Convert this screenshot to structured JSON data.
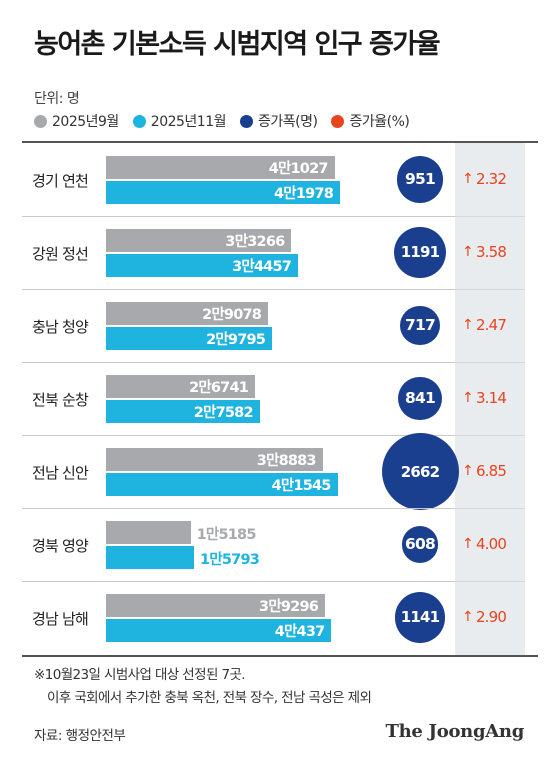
{
  "title": "농어촌 기본소득 시범지역 인구 증가율",
  "unit_label": "단위: 명",
  "legend": [
    {
      "label": "2025년9월",
      "color": "#a7a9ac"
    },
    {
      "label": "2025년11월",
      "color": "#1fb3e0"
    },
    {
      "label": "증가폭(명)",
      "color": "#1b3f8f"
    },
    {
      "label": "증가율(%)",
      "color": "#e8441e"
    }
  ],
  "chart_data": {
    "type": "bar",
    "categories": [
      "경기 연천",
      "강원 정선",
      "충남 청양",
      "전북 순창",
      "전남 신안",
      "경북 영양",
      "경남 남해"
    ],
    "series": [
      {
        "name": "2025년9월",
        "values": [
          41027,
          33266,
          29078,
          26741,
          38883,
          15185,
          39296
        ],
        "labels": [
          "4만1027",
          "3만3266",
          "2만9078",
          "2만6741",
          "3만8883",
          "1만5185",
          "3만9296"
        ]
      },
      {
        "name": "2025년11월",
        "values": [
          41978,
          34457,
          29795,
          27582,
          41545,
          15793,
          40437
        ],
        "labels": [
          "4만1978",
          "3만4457",
          "2만9795",
          "2만7582",
          "4만1545",
          "1만5793",
          "4만437"
        ]
      },
      {
        "name": "증가폭(명)",
        "values": [
          951,
          1191,
          717,
          841,
          2662,
          608,
          1141
        ]
      },
      {
        "name": "증가율(%)",
        "values": [
          2.32,
          3.58,
          2.47,
          3.14,
          6.85,
          4.0,
          2.9
        ],
        "labels": [
          "2.32",
          "3.58",
          "2.47",
          "3.14",
          "6.85",
          "4.00",
          "2.90"
        ]
      }
    ]
  },
  "rate_arrow": "↑",
  "footnote": {
    "line1": "※10월23일 시범사업 대상 선정된 7곳.",
    "line2": "이후 국회에서 추가한 충북 옥천, 전북 장수, 전남 곡성은 제외"
  },
  "source": "자료: 행정안전부",
  "logo": "The JoongAng"
}
